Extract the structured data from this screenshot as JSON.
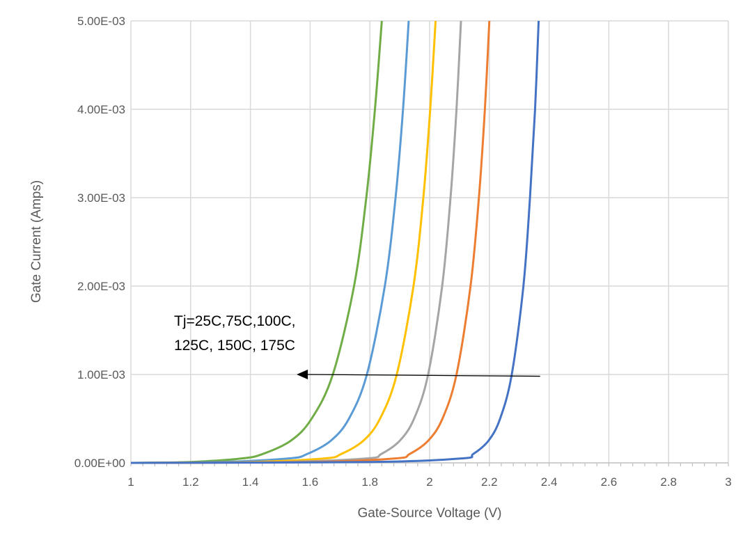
{
  "chart_data": {
    "type": "line",
    "title": "",
    "xlabel": "Gate-Source Voltage (V)",
    "ylabel": "Gate Current (Amps)",
    "xlim": [
      1,
      3
    ],
    "ylim": [
      0,
      0.005
    ],
    "grid": true,
    "x_ticks": [
      1,
      1.2,
      1.4,
      1.6,
      1.8,
      2,
      2.2,
      2.4,
      2.6,
      2.8,
      3
    ],
    "x_tick_labels": [
      "1",
      "1.2",
      "1.4",
      "1.6",
      "1.8",
      "2",
      "2.2",
      "2.4",
      "2.6",
      "2.8",
      "3"
    ],
    "y_ticks": [
      0,
      0.001,
      0.002,
      0.003,
      0.004,
      0.005
    ],
    "y_tick_labels": [
      "0.00E+00",
      "1.00E-03",
      "2.00E-03",
      "3.00E-03",
      "4.00E-03",
      "5.00E-03"
    ],
    "annotation": {
      "lines": [
        "Tj=25C,75C,100C,",
        "125C, 150C, 175C"
      ]
    },
    "series": [
      {
        "color": "#70AD47",
        "points": [
          [
            1,
            0
          ],
          [
            1.2,
            1e-05
          ],
          [
            1.371,
            5e-05
          ],
          [
            1.441,
            0.0001
          ],
          [
            1.535,
            0.00025
          ],
          [
            1.605,
            0.0005
          ],
          [
            1.676,
            0.001
          ],
          [
            1.747,
            0.002
          ],
          [
            1.788,
            0.003
          ],
          [
            1.817,
            0.004
          ],
          [
            1.84,
            0.005
          ]
        ]
      },
      {
        "color": "#5B9BD5",
        "points": [
          [
            1,
            0
          ],
          [
            1.3,
            1e-05
          ],
          [
            1.529,
            5e-05
          ],
          [
            1.59,
            0.0001
          ],
          [
            1.669,
            0.00025
          ],
          [
            1.73,
            0.0005
          ],
          [
            1.79,
            0.001
          ],
          [
            1.85,
            0.002
          ],
          [
            1.886,
            0.003
          ],
          [
            1.911,
            0.004
          ],
          [
            1.93,
            0.005
          ]
        ]
      },
      {
        "color": "#FFC000",
        "points": [
          [
            1,
            0
          ],
          [
            1.4,
            1e-05
          ],
          [
            1.648,
            5e-05
          ],
          [
            1.704,
            0.0001
          ],
          [
            1.778,
            0.00025
          ],
          [
            1.834,
            0.0005
          ],
          [
            1.89,
            0.001
          ],
          [
            1.946,
            0.002
          ],
          [
            1.979,
            0.003
          ],
          [
            2.002,
            0.004
          ],
          [
            2.02,
            0.005
          ]
        ]
      },
      {
        "color": "#A5A5A5",
        "points": [
          [
            1,
            0
          ],
          [
            1.5,
            1e-05
          ],
          [
            1.79,
            5e-05
          ],
          [
            1.838,
            0.0001
          ],
          [
            1.9,
            0.00025
          ],
          [
            1.948,
            0.0005
          ],
          [
            1.995,
            0.001
          ],
          [
            2.042,
            0.002
          ],
          [
            2.07,
            0.003
          ],
          [
            2.09,
            0.004
          ],
          [
            2.105,
            0.005
          ]
        ]
      },
      {
        "color": "#ED7D31",
        "points": [
          [
            1,
            0
          ],
          [
            1.6,
            1e-05
          ],
          [
            1.885,
            5e-05
          ],
          [
            1.933,
            0.0001
          ],
          [
            1.995,
            0.00025
          ],
          [
            2.043,
            0.0005
          ],
          [
            2.09,
            0.001
          ],
          [
            2.137,
            0.002
          ],
          [
            2.165,
            0.003
          ],
          [
            2.185,
            0.004
          ],
          [
            2.2,
            0.005
          ]
        ]
      },
      {
        "color": "#4472C4",
        "points": [
          [
            1,
            0
          ],
          [
            1.8,
            1e-05
          ],
          [
            2.107,
            5e-05
          ],
          [
            2.146,
            0.0001
          ],
          [
            2.197,
            0.00025
          ],
          [
            2.236,
            0.0005
          ],
          [
            2.275,
            0.001
          ],
          [
            2.314,
            0.002
          ],
          [
            2.336,
            0.003
          ],
          [
            2.353,
            0.004
          ],
          [
            2.365,
            0.005
          ]
        ]
      }
    ]
  }
}
